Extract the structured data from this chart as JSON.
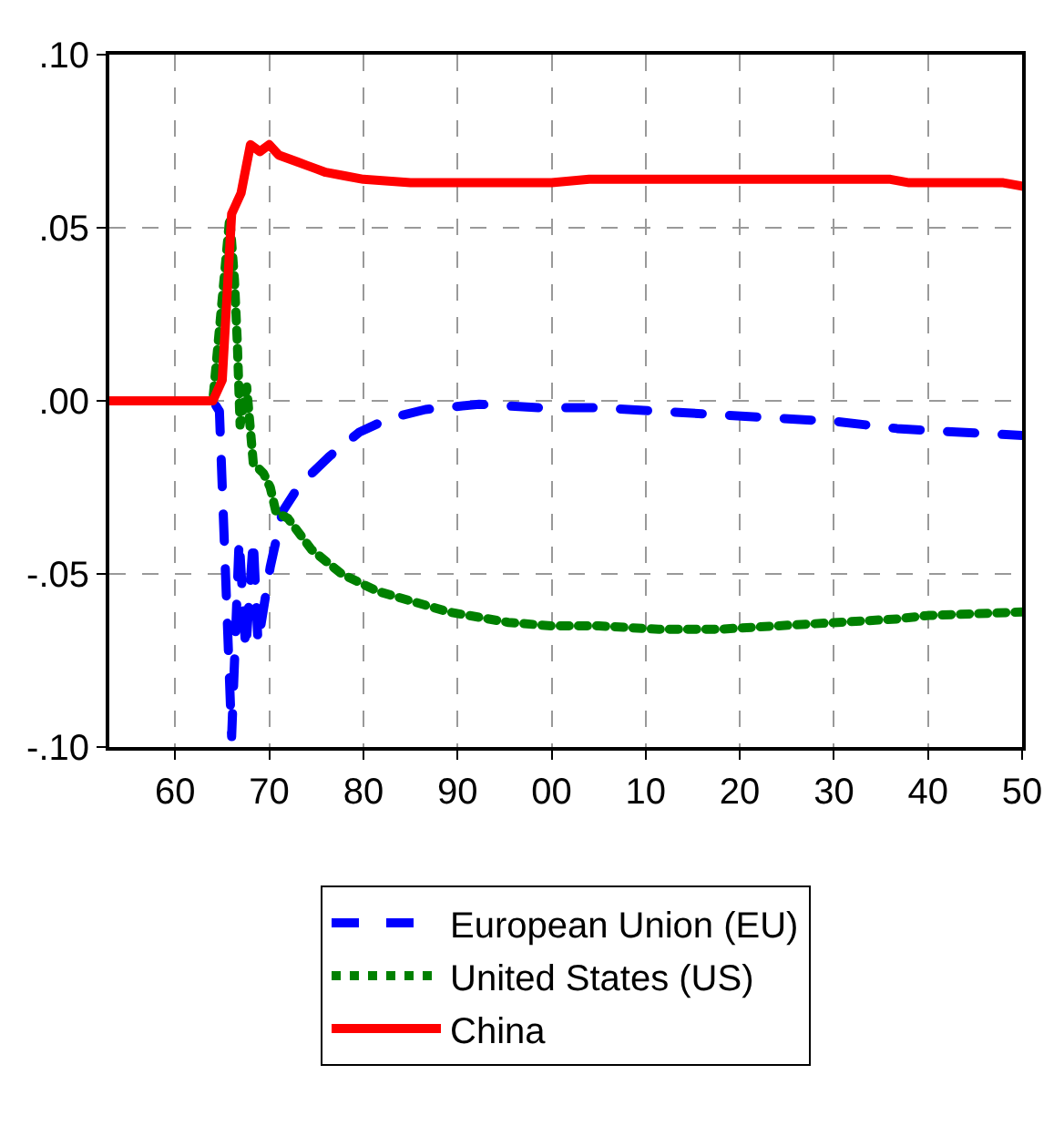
{
  "chart_data": {
    "type": "line",
    "xlim": [
      1953,
      2050
    ],
    "xticks": [
      {
        "value": 1960,
        "label": "60"
      },
      {
        "value": 1970,
        "label": "70"
      },
      {
        "value": 1980,
        "label": "80"
      },
      {
        "value": 1990,
        "label": "90"
      },
      {
        "value": 2000,
        "label": "00"
      },
      {
        "value": 2010,
        "label": "10"
      },
      {
        "value": 2020,
        "label": "20"
      },
      {
        "value": 2030,
        "label": "30"
      },
      {
        "value": 2040,
        "label": "40"
      },
      {
        "value": 2050,
        "label": "50"
      }
    ],
    "ylim": [
      -0.1,
      0.1
    ],
    "yticks": [
      {
        "value": -0.1,
        "label": "-.10"
      },
      {
        "value": -0.05,
        "label": "-.05"
      },
      {
        "value": 0,
        "label": ".00"
      },
      {
        "value": 0.05,
        "label": ".05"
      },
      {
        "value": 0.1,
        "label": ".10"
      }
    ],
    "grid": true,
    "legend": "bottom",
    "marker": "none",
    "series": [
      {
        "name": "European Union (EU)",
        "color": "#0000ff",
        "line_style": "dashed",
        "x": [
          1953,
          1964,
          1964.7,
          1966,
          1966.8,
          1967.5,
          1968.3,
          1968.8,
          1970.1,
          1971.4,
          1973.3,
          1974.5,
          1976.4,
          1979.6,
          1982.8,
          1986.6,
          1992.3,
          1998.7,
          2005,
          2011.4,
          2017.7,
          2024,
          2030.4,
          2036.7,
          2043,
          2050
        ],
        "values": [
          0,
          0,
          -0.003,
          -0.097,
          -0.04,
          -0.072,
          -0.04,
          -0.07,
          -0.048,
          -0.032,
          -0.024,
          -0.021,
          -0.016,
          -0.009,
          -0.005,
          -0.0025,
          -0.001,
          -0.002,
          -0.002,
          -0.003,
          -0.004,
          -0.005,
          -0.006,
          -0.008,
          -0.009,
          -0.01
        ]
      },
      {
        "name": "United States (US)",
        "color": "#008000",
        "line_style": "dotted",
        "x": [
          1953,
          1964,
          1965.8,
          1966.3,
          1966.6,
          1966.9,
          1967.6,
          1968.3,
          1969.4,
          1970.1,
          1970.7,
          1972,
          1974.5,
          1977.7,
          1981.5,
          1985.3,
          1989.1,
          1995.4,
          2000,
          2005,
          2011.4,
          2017.7,
          2024,
          2030.4,
          2036.7,
          2040,
          2050
        ],
        "values": [
          0,
          0,
          0.053,
          0.035,
          0.017,
          -0.007,
          0.004,
          -0.018,
          -0.021,
          -0.025,
          -0.032,
          -0.034,
          -0.043,
          -0.05,
          -0.055,
          -0.058,
          -0.061,
          -0.064,
          -0.065,
          -0.065,
          -0.066,
          -0.066,
          -0.065,
          -0.064,
          -0.063,
          -0.062,
          -0.061
        ]
      },
      {
        "name": "China",
        "color": "#ff0000",
        "line_style": "solid",
        "x": [
          1953,
          1964,
          1965,
          1966,
          1967,
          1968,
          1969,
          1970,
          1971,
          1972,
          1973,
          1974,
          1975,
          1976,
          1978,
          1980,
          1985,
          2000,
          2004,
          2036,
          2038,
          2048,
          2050
        ],
        "values": [
          0,
          0,
          0.006,
          0.054,
          0.06,
          0.074,
          0.072,
          0.074,
          0.071,
          0.07,
          0.069,
          0.068,
          0.067,
          0.066,
          0.065,
          0.064,
          0.063,
          0.063,
          0.064,
          0.064,
          0.063,
          0.063,
          0.062
        ]
      }
    ]
  }
}
